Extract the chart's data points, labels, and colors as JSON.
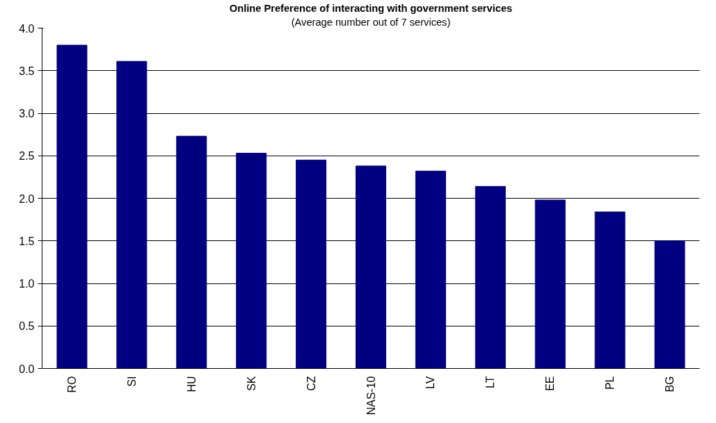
{
  "chart_data": {
    "type": "bar",
    "title": "Online Preference of interacting with government services",
    "subtitle": "(Average number out of 7 services)",
    "categories": [
      "RO",
      "SI",
      "HU",
      "SK",
      "CZ",
      "NAS-10",
      "LV",
      "LT",
      "EE",
      "PL",
      "BG"
    ],
    "values": [
      3.8,
      3.61,
      2.73,
      2.53,
      2.45,
      2.38,
      2.32,
      2.14,
      1.98,
      1.84,
      1.5
    ],
    "color": "#000080",
    "ylim": [
      0,
      4
    ],
    "yticks": [
      {
        "value": 0,
        "label": "0.0"
      },
      {
        "value": 0.5,
        "label": "0.5"
      },
      {
        "value": 1,
        "label": "1.0"
      },
      {
        "value": 1.5,
        "label": "1.5"
      },
      {
        "value": 2,
        "label": "2.0"
      },
      {
        "value": 2.5,
        "label": "2.5"
      },
      {
        "value": 3,
        "label": "3.0"
      },
      {
        "value": 3.5,
        "label": "3.5"
      },
      {
        "value": 4,
        "label": "4.0"
      }
    ],
    "grid": "y"
  }
}
